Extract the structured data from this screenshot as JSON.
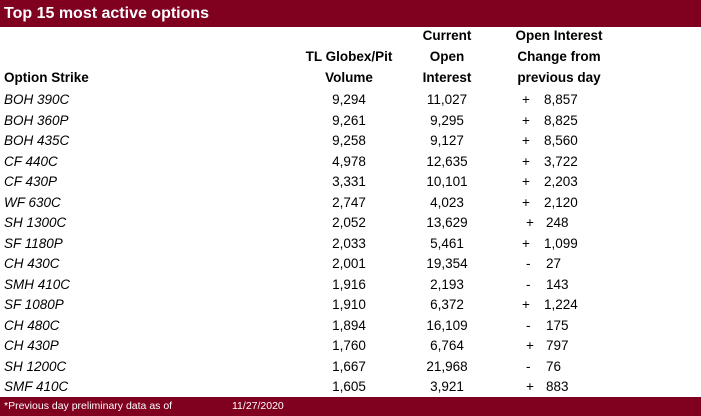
{
  "title": "Top 15 most active options",
  "headers": {
    "strike": "Option Strike",
    "volume": [
      "TL Globex/Pit",
      "Volume"
    ],
    "open_interest": [
      "Current",
      "Open",
      "Interest"
    ],
    "change": [
      "Open Interest",
      "Change from",
      "previous day"
    ]
  },
  "rows": [
    {
      "strike": "BOH 390C",
      "volume": "9,294",
      "oi": "11,027",
      "sign": "+",
      "change": "8,857"
    },
    {
      "strike": "BOH 360P",
      "volume": "9,261",
      "oi": "9,295",
      "sign": "+",
      "change": "8,825"
    },
    {
      "strike": "BOH 435C",
      "volume": "9,258",
      "oi": "9,127",
      "sign": "+",
      "change": "8,560"
    },
    {
      "strike": "CF 440C",
      "volume": "4,978",
      "oi": "12,635",
      "sign": "+",
      "change": "3,722"
    },
    {
      "strike": "CF 430P",
      "volume": "3,331",
      "oi": "10,101",
      "sign": "+",
      "change": "2,203"
    },
    {
      "strike": "WF 630C",
      "volume": "2,747",
      "oi": "4,023",
      "sign": "+",
      "change": "2,120"
    },
    {
      "strike": "SH 1300C",
      "volume": "2,052",
      "oi": "13,629",
      "sign": "+",
      "change": "248"
    },
    {
      "strike": "SF 1180P",
      "volume": "2,033",
      "oi": "5,461",
      "sign": "+",
      "change": "1,099"
    },
    {
      "strike": "CH 430C",
      "volume": "2,001",
      "oi": "19,354",
      "sign": "-",
      "change": "27"
    },
    {
      "strike": "SMH 410C",
      "volume": "1,916",
      "oi": "2,193",
      "sign": "-",
      "change": "143"
    },
    {
      "strike": "SF 1080P",
      "volume": "1,910",
      "oi": "6,372",
      "sign": "+",
      "change": "1,224"
    },
    {
      "strike": "CH 480C",
      "volume": "1,894",
      "oi": "16,109",
      "sign": "-",
      "change": "175"
    },
    {
      "strike": "CH 430P",
      "volume": "1,760",
      "oi": "6,764",
      "sign": "+",
      "change": "797"
    },
    {
      "strike": "SH 1200C",
      "volume": "1,667",
      "oi": "21,968",
      "sign": "-",
      "change": "76"
    },
    {
      "strike": "SMF 410C",
      "volume": "1,605",
      "oi": "3,921",
      "sign": "+",
      "change": "883"
    }
  ],
  "footer": {
    "note": "*Previous day preliminary data as of",
    "date": "11/27/2020"
  },
  "colors": {
    "brand": "#800020"
  }
}
